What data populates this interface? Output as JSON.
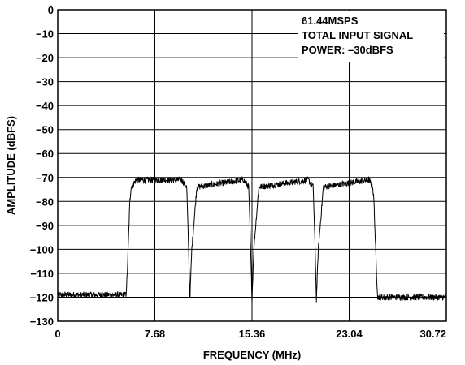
{
  "chart_data": {
    "type": "line",
    "title": "",
    "xlabel": "FREQUENCY (MHz)",
    "ylabel": "AMPLITUDE (dBFS)",
    "xlim": [
      0,
      30.72
    ],
    "ylim": [
      -130,
      0
    ],
    "x_ticks": [
      "0",
      "7.68",
      "15.36",
      "23.04",
      "30.72"
    ],
    "x_tick_values": [
      0,
      7.68,
      15.36,
      23.04,
      30.72
    ],
    "y_ticks": [
      "0",
      "−10",
      "−20",
      "−30",
      "−40",
      "−50",
      "−60",
      "−70",
      "−80",
      "−90",
      "−100",
      "−110",
      "−120",
      "−130"
    ],
    "y_tick_values": [
      0,
      -10,
      -20,
      -30,
      -40,
      -50,
      -60,
      -70,
      -80,
      -90,
      -100,
      -110,
      -120,
      -130
    ],
    "grid": true,
    "annotation": [
      "61.44MSPS",
      "TOTAL INPUT SIGNAL",
      "POWER: –30dBFS"
    ],
    "series": [
      {
        "x": [
          0,
          5.4,
          5.5,
          5.7,
          5.8,
          6.2,
          9.8,
          10.2,
          10.35,
          10.45,
          10.6,
          11.0,
          14.7,
          15.1,
          15.25,
          15.36,
          15.5,
          15.9,
          19.8,
          20.2,
          20.35,
          20.45,
          20.6,
          21.0,
          24.6,
          24.9,
          25.0,
          25.2,
          25.3,
          30.72
        ],
        "y": [
          -119,
          -119,
          -110,
          -80,
          -74,
          -71,
          -71,
          -74,
          -100,
          -121,
          -100,
          -74,
          -71,
          -74,
          -100,
          -121,
          -100,
          -74,
          -71,
          -74,
          -100,
          -121,
          -100,
          -74,
          -71,
          -74,
          -80,
          -110,
          -120,
          -120
        ]
      }
    ],
    "color": "#000000"
  }
}
